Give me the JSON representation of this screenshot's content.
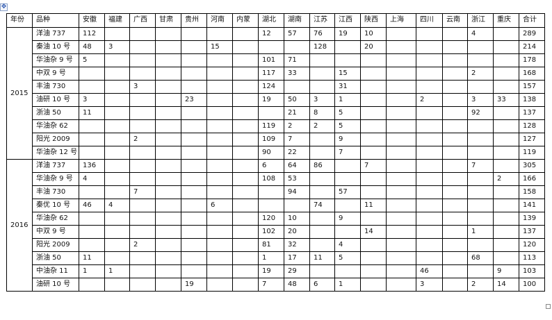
{
  "headers": [
    "年份",
    "品种",
    "安徽",
    "福建",
    "广西",
    "甘肃",
    "贵州",
    "河南",
    "内蒙",
    "湖北",
    "湖南",
    "江苏",
    "江西",
    "陕西",
    "上海",
    "四川",
    "云南",
    "浙江",
    "重庆",
    "合计"
  ],
  "groups": [
    {
      "year": "2015",
      "rows": [
        {
          "variety": "洋油 737",
          "values": [
            "112",
            "",
            "",
            "",
            "",
            "",
            "",
            "12",
            "57",
            "76",
            "19",
            "10",
            "",
            "",
            "",
            "4",
            "",
            "289"
          ]
        },
        {
          "variety": "秦油 10 号",
          "values": [
            "48",
            "3",
            "",
            "",
            "",
            "15",
            "",
            "",
            "",
            "128",
            "",
            "20",
            "",
            "",
            "",
            "",
            "",
            "214"
          ]
        },
        {
          "variety": "华油杂 9 号",
          "values": [
            "5",
            "",
            "",
            "",
            "",
            "",
            "",
            "101",
            "71",
            "",
            "",
            "",
            "",
            "",
            "",
            "",
            "",
            "178"
          ]
        },
        {
          "variety": "中双 9 号",
          "values": [
            "",
            "",
            "",
            "",
            "",
            "",
            "",
            "117",
            "33",
            "",
            "15",
            "",
            "",
            "",
            "",
            "2",
            "",
            "168"
          ]
        },
        {
          "variety": "丰油 730",
          "values": [
            "",
            "",
            "3",
            "",
            "",
            "",
            "",
            "124",
            "",
            "",
            "31",
            "",
            "",
            "",
            "",
            "",
            "",
            "157"
          ]
        },
        {
          "variety": "油研 10 号",
          "values": [
            "3",
            "",
            "",
            "",
            "23",
            "",
            "",
            "19",
            "50",
            "3",
            "1",
            "",
            "",
            "2",
            "",
            "3",
            "33",
            "138"
          ]
        },
        {
          "variety": "浙油 50",
          "values": [
            "11",
            "",
            "",
            "",
            "",
            "",
            "",
            "",
            "21",
            "8",
            "5",
            "",
            "",
            "",
            "",
            "92",
            "",
            "137"
          ]
        },
        {
          "variety": "华油杂 62",
          "values": [
            "",
            "",
            "",
            "",
            "",
            "",
            "",
            "119",
            "2",
            "2",
            "5",
            "",
            "",
            "",
            "",
            "",
            "",
            "128"
          ]
        },
        {
          "variety": "阳光 2009",
          "values": [
            "",
            "",
            "2",
            "",
            "",
            "",
            "",
            "109",
            "7",
            "",
            "9",
            "",
            "",
            "",
            "",
            "",
            "",
            "127"
          ]
        },
        {
          "variety": "华油杂 12 号",
          "values": [
            "",
            "",
            "",
            "",
            "",
            "",
            "",
            "90",
            "22",
            "",
            "7",
            "",
            "",
            "",
            "",
            "",
            "",
            "119"
          ]
        }
      ]
    },
    {
      "year": "2016",
      "rows": [
        {
          "variety": "洋油 737",
          "values": [
            "136",
            "",
            "",
            "",
            "",
            "",
            "",
            "6",
            "64",
            "86",
            "",
            "7",
            "",
            "",
            "",
            "7",
            "",
            "305"
          ]
        },
        {
          "variety": "华油杂 9 号",
          "values": [
            "4",
            "",
            "",
            "",
            "",
            "",
            "",
            "108",
            "53",
            "",
            "",
            "",
            "",
            "",
            "",
            "",
            "2",
            "166"
          ]
        },
        {
          "variety": "丰油 730",
          "values": [
            "",
            "",
            "7",
            "",
            "",
            "",
            "",
            "",
            "94",
            "",
            "57",
            "",
            "",
            "",
            "",
            "",
            "",
            "158"
          ]
        },
        {
          "variety": "秦优 10 号",
          "values": [
            "46",
            "4",
            "",
            "",
            "",
            "6",
            "",
            "",
            "",
            "74",
            "",
            "11",
            "",
            "",
            "",
            "",
            "",
            "141"
          ]
        },
        {
          "variety": "华油杂 62",
          "values": [
            "",
            "",
            "",
            "",
            "",
            "",
            "",
            "120",
            "10",
            "",
            "9",
            "",
            "",
            "",
            "",
            "",
            "",
            "139"
          ]
        },
        {
          "variety": "中双 9 号",
          "values": [
            "",
            "",
            "",
            "",
            "",
            "",
            "",
            "102",
            "20",
            "",
            "",
            "14",
            "",
            "",
            "",
            "1",
            "",
            "137"
          ]
        },
        {
          "variety": "阳光 2009",
          "values": [
            "",
            "",
            "2",
            "",
            "",
            "",
            "",
            "81",
            "32",
            "",
            "4",
            "",
            "",
            "",
            "",
            "",
            "",
            "120"
          ]
        },
        {
          "variety": "浙油 50",
          "values": [
            "11",
            "",
            "",
            "",
            "",
            "",
            "",
            "1",
            "17",
            "11",
            "5",
            "",
            "",
            "",
            "",
            "68",
            "",
            "113"
          ]
        },
        {
          "variety": "中油杂 11",
          "values": [
            "1",
            "1",
            "",
            "",
            "",
            "",
            "",
            "19",
            "29",
            "",
            "",
            "",
            "",
            "46",
            "",
            "",
            "9",
            "103"
          ]
        },
        {
          "variety": "油研 10 号",
          "values": [
            "",
            "",
            "",
            "",
            "19",
            "",
            "",
            "7",
            "48",
            "6",
            "1",
            "",
            "",
            "3",
            "",
            "2",
            "14",
            "100"
          ]
        }
      ]
    }
  ]
}
